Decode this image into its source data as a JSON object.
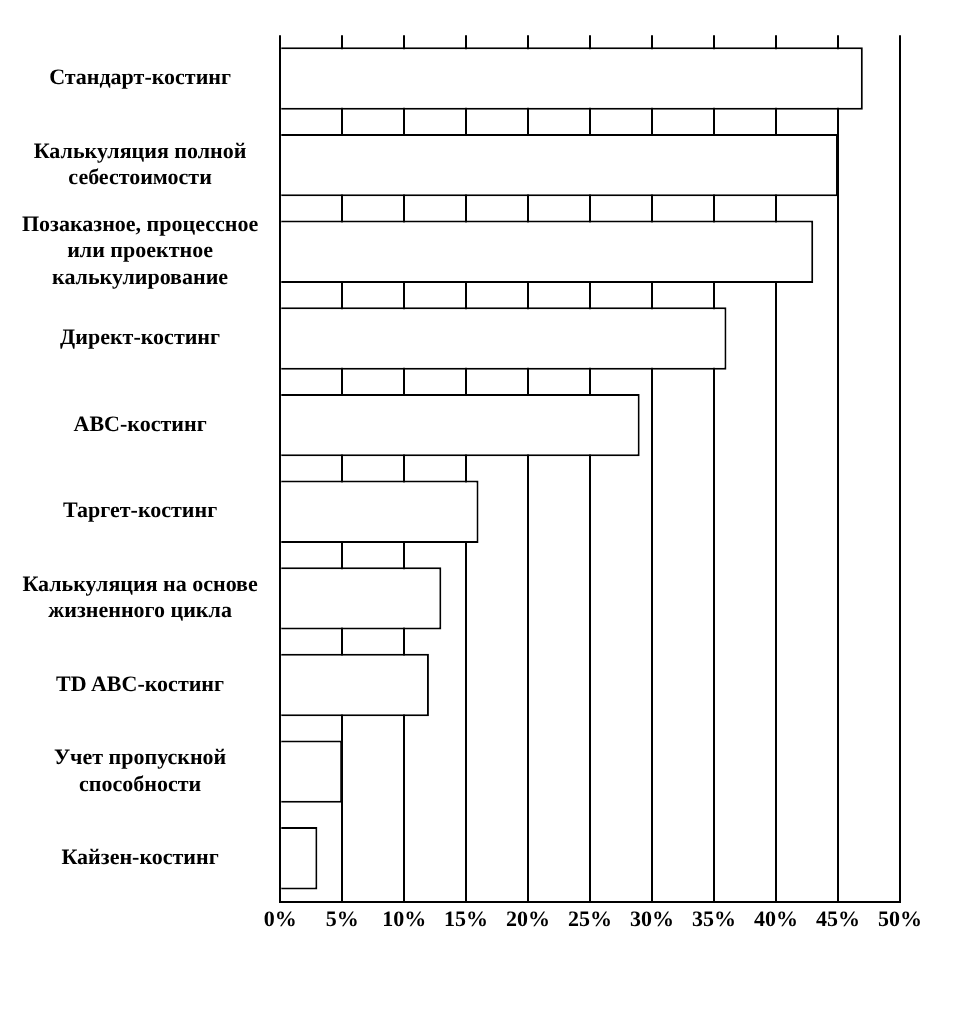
{
  "chart_data": {
    "type": "bar",
    "orientation": "horizontal",
    "categories": [
      "Стандарт-костинг",
      "Калькуляция полной себестоимости",
      "Позаказное, процессное или проектное калькулирование",
      "Директ-костинг",
      "ABC-костинг",
      "Таргет-костинг",
      "Калькуляция на основе жизненного цикла",
      "TD ABC-костинг",
      "Учет пропускной способности",
      "Кайзен-костинг"
    ],
    "values": [
      47,
      45,
      43,
      36,
      29,
      16,
      13,
      12,
      5,
      3
    ],
    "color": "#ffffff",
    "xlim": [
      0,
      50
    ],
    "xticks": [
      {
        "value": 0,
        "label": "0%"
      },
      {
        "value": 5,
        "label": "5%"
      },
      {
        "value": 10,
        "label": "10%"
      },
      {
        "value": 15,
        "label": "15%"
      },
      {
        "value": 20,
        "label": "20%"
      },
      {
        "value": 25,
        "label": "25%"
      },
      {
        "value": 30,
        "label": "30%"
      },
      {
        "value": 35,
        "label": "35%"
      },
      {
        "value": 40,
        "label": "40%"
      },
      {
        "value": 45,
        "label": "45%"
      },
      {
        "value": 50,
        "label": "50%"
      }
    ],
    "grid": "x",
    "legend": false
  }
}
